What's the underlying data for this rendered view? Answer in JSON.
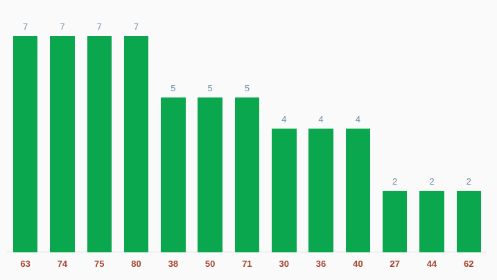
{
  "chart_data": {
    "type": "bar",
    "title": "",
    "xlabel": "",
    "ylabel": "",
    "categories": [
      "63",
      "74",
      "75",
      "80",
      "38",
      "50",
      "71",
      "30",
      "36",
      "40",
      "27",
      "44",
      "62"
    ],
    "values": [
      7,
      7,
      7,
      7,
      5,
      5,
      5,
      4,
      4,
      4,
      2,
      2,
      2
    ],
    "ylim": [
      0,
      7
    ],
    "grid": false,
    "legend_position": "none",
    "value_labels_shown": true,
    "colors": {
      "bar": "#0aa74f",
      "value_label": "#6d8ca3",
      "category_label": "#a5422f",
      "axis_line": "#e0e0e0",
      "background": "#fafafa"
    }
  }
}
